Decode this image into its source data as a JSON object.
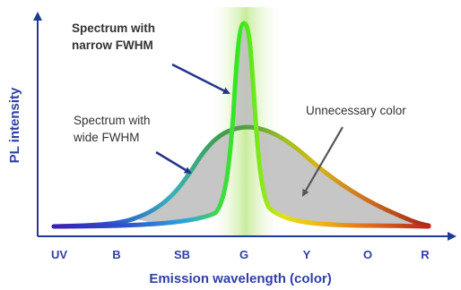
{
  "colors": {
    "axis": "#1f3b99",
    "axis_title": "#2f3fa6",
    "tick_label": "#2f3fa6",
    "annotation_text": "#333333",
    "pointer_arrow": "#24348c",
    "gray_arrow": "#555555",
    "fill_gray": "#c0c0c0",
    "highlight_band": "#c8ec9c"
  },
  "axes": {
    "x_title": "Emission wavelength (color)",
    "y_title": "PL intensity",
    "ticks": [
      "UV",
      "B",
      "SB",
      "G",
      "Y",
      "O",
      "R"
    ]
  },
  "annotations": {
    "narrow": {
      "line1": "Spectrum with",
      "line2": "narrow FWHM"
    },
    "wide": {
      "line1": "Spectrum with",
      "line2": "wide FWHM"
    },
    "unnecessary": "Unnecessary color"
  }
}
